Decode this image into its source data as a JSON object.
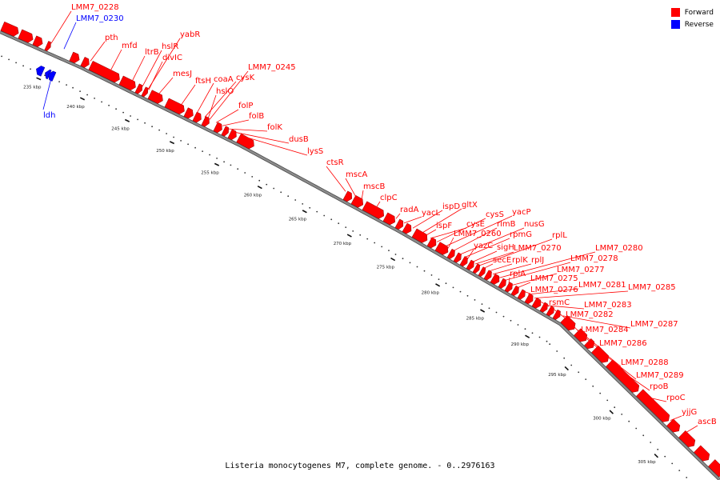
{
  "colors": {
    "forward": "#ff0000",
    "reverse": "#0000ff",
    "backbone": "#8c8c8c"
  },
  "legend": [
    {
      "label": "Forward",
      "color": "#ff0000"
    },
    {
      "label": "Reverse",
      "color": "#0000ff"
    }
  ],
  "caption": "Listeria monocytogenes M7, complete genome. - 0..2976163",
  "ticks": [
    "230 kbp",
    "235 kbp",
    "240 kbp",
    "245 kbp",
    "250 kbp",
    "255 kbp",
    "260 kbp",
    "265 kbp",
    "270 kbp",
    "275 kbp",
    "280 kbp",
    "285 kbp",
    "290 kbp",
    "295 kbp",
    "300 kbp",
    "305 kbp"
  ],
  "genes": [
    {
      "label": "LMM7_0228",
      "strand": "forward"
    },
    {
      "label": "LMM7_0230",
      "strand": "reverse"
    },
    {
      "label": "pth",
      "strand": "forward"
    },
    {
      "label": "mfd",
      "strand": "forward"
    },
    {
      "label": "ltrB",
      "strand": "forward"
    },
    {
      "label": "hslR",
      "strand": "forward"
    },
    {
      "label": "yabR",
      "strand": "forward"
    },
    {
      "label": "divIC",
      "strand": "forward"
    },
    {
      "label": "ldh",
      "strand": "reverse"
    },
    {
      "label": "mesJ",
      "strand": "forward"
    },
    {
      "label": "ftsH",
      "strand": "forward"
    },
    {
      "label": "coaA",
      "strand": "forward"
    },
    {
      "label": "cysK",
      "strand": "forward"
    },
    {
      "label": "LMM7_0245",
      "strand": "forward"
    },
    {
      "label": "hslO",
      "strand": "forward"
    },
    {
      "label": "folP",
      "strand": "forward"
    },
    {
      "label": "folB",
      "strand": "forward"
    },
    {
      "label": "folK",
      "strand": "forward"
    },
    {
      "label": "dusB",
      "strand": "forward"
    },
    {
      "label": "lysS",
      "strand": "forward"
    },
    {
      "label": "ctsR",
      "strand": "forward"
    },
    {
      "label": "mscA",
      "strand": "forward"
    },
    {
      "label": "mscB",
      "strand": "forward"
    },
    {
      "label": "clpC",
      "strand": "forward"
    },
    {
      "label": "radA",
      "strand": "forward"
    },
    {
      "label": "yacL",
      "strand": "forward"
    },
    {
      "label": "ispD",
      "strand": "forward"
    },
    {
      "label": "gltX",
      "strand": "forward"
    },
    {
      "label": "ispF",
      "strand": "forward"
    },
    {
      "label": "cysE",
      "strand": "forward"
    },
    {
      "label": "cysS",
      "strand": "forward"
    },
    {
      "label": "yacP",
      "strand": "forward"
    },
    {
      "label": "LMM7_0260",
      "strand": "forward"
    },
    {
      "label": "rlmB",
      "strand": "forward"
    },
    {
      "label": "nusG",
      "strand": "forward"
    },
    {
      "label": "rpmG",
      "strand": "forward"
    },
    {
      "label": "yazC",
      "strand": "forward"
    },
    {
      "label": "sigH",
      "strand": "forward"
    },
    {
      "label": "LMM7_0270",
      "strand": "forward"
    },
    {
      "label": "rplL",
      "strand": "forward"
    },
    {
      "label": "secE",
      "strand": "forward"
    },
    {
      "label": "rplK",
      "strand": "forward"
    },
    {
      "label": "rplJ",
      "strand": "forward"
    },
    {
      "label": "LMM7_0280",
      "strand": "forward"
    },
    {
      "label": "LMM7_0278",
      "strand": "forward"
    },
    {
      "label": "rplA",
      "strand": "forward"
    },
    {
      "label": "LMM7_0277",
      "strand": "forward"
    },
    {
      "label": "LMM7_0275",
      "strand": "forward"
    },
    {
      "label": "LMM7_0276",
      "strand": "forward"
    },
    {
      "label": "LMM7_0281",
      "strand": "forward"
    },
    {
      "label": "LMM7_0285",
      "strand": "forward"
    },
    {
      "label": "rsmC",
      "strand": "forward"
    },
    {
      "label": "LMM7_0283",
      "strand": "forward"
    },
    {
      "label": "LMM7_0282",
      "strand": "forward"
    },
    {
      "label": "LMM7_0287",
      "strand": "forward"
    },
    {
      "label": "LMM7_0284",
      "strand": "forward"
    },
    {
      "label": "LMM7_0286",
      "strand": "forward"
    },
    {
      "label": "LMM7_0288",
      "strand": "forward"
    },
    {
      "label": "LMM7_0289",
      "strand": "forward"
    },
    {
      "label": "rpoB",
      "strand": "forward"
    },
    {
      "label": "rpoC",
      "strand": "forward"
    },
    {
      "label": "yjjG",
      "strand": "forward"
    },
    {
      "label": "ascB",
      "strand": "forward"
    }
  ]
}
